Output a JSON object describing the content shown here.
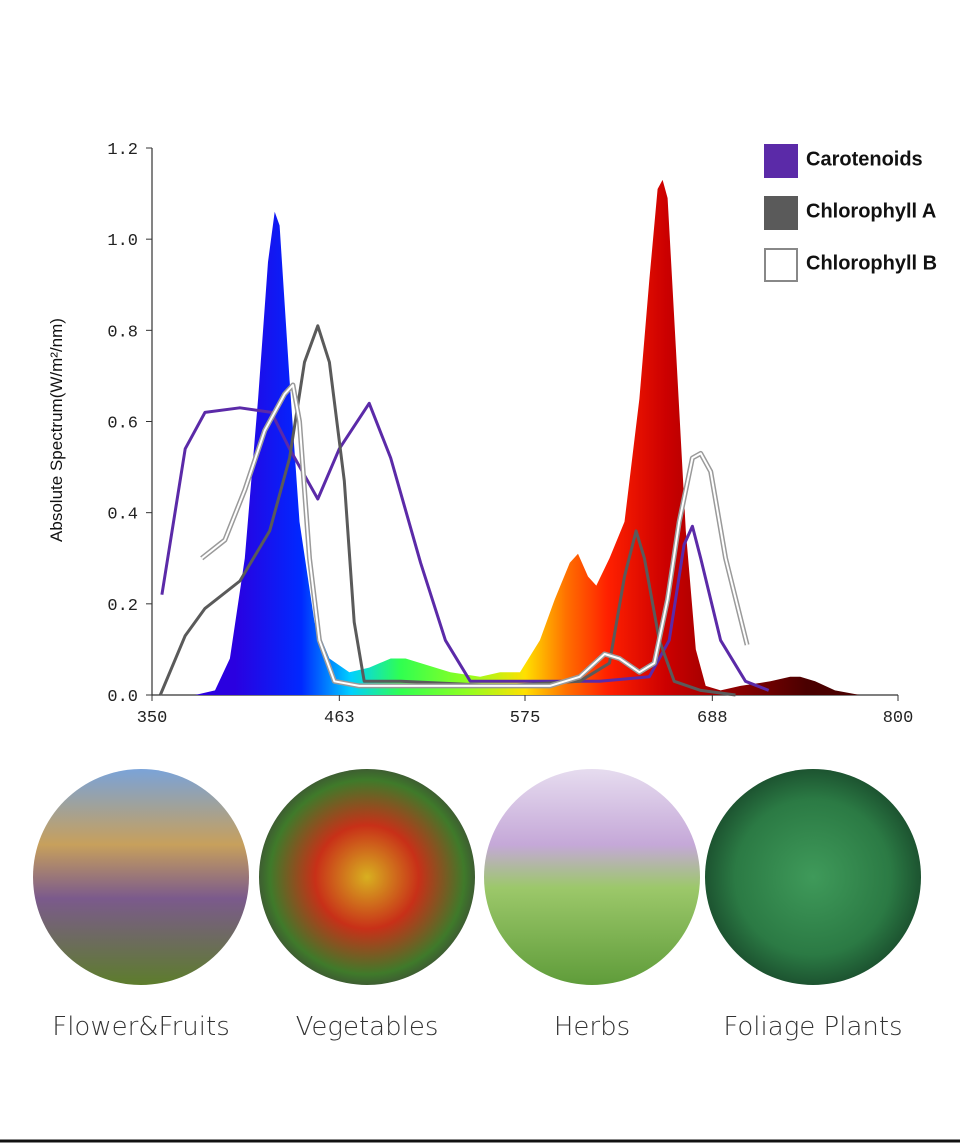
{
  "chart_data": {
    "type": "spectrum",
    "ylabel": "Absolute Spectrum(W/m²/nm)",
    "xlim": [
      350,
      800
    ],
    "xticks": [
      350,
      463,
      575,
      688,
      800
    ],
    "ylim": [
      0,
      1.2
    ],
    "yticks": [
      {
        "value": 0,
        "label": "0.0"
      },
      0.2,
      0.4,
      0.6,
      0.8,
      {
        "value": 1,
        "label": "1.0"
      },
      1.2
    ],
    "legend": "top-right",
    "series": [
      {
        "type": "area",
        "gradient": [
          {
            "x": 400,
            "color": "#2a00e0"
          },
          {
            "x": 440,
            "color": "#0028ff"
          },
          {
            "x": 470,
            "color": "#00d0ff"
          },
          {
            "x": 500,
            "color": "#30ff50"
          },
          {
            "x": 540,
            "color": "#90ff20"
          },
          {
            "x": 575,
            "color": "#ffe000"
          },
          {
            "x": 600,
            "color": "#ff7000"
          },
          {
            "x": 625,
            "color": "#ff2000"
          },
          {
            "x": 660,
            "color": "#cc0000"
          },
          {
            "x": 745,
            "color": "#4a0000"
          }
        ],
        "x": [
          376,
          388,
          397,
          406,
          414,
          420,
          424,
          427,
          433,
          439,
          448,
          457,
          469,
          481,
          494,
          503,
          512,
          530,
          548,
          560,
          572,
          584,
          593,
          602,
          607,
          613,
          618,
          626,
          635,
          644,
          650,
          655,
          658,
          661,
          666,
          672,
          678,
          684,
          693,
          705,
          723,
          735,
          741,
          750,
          762,
          777
        ],
        "values": [
          0,
          0.01,
          0.08,
          0.3,
          0.65,
          0.95,
          1.06,
          1.03,
          0.69,
          0.38,
          0.16,
          0.08,
          0.05,
          0.06,
          0.08,
          0.08,
          0.07,
          0.05,
          0.04,
          0.05,
          0.05,
          0.12,
          0.21,
          0.29,
          0.31,
          0.26,
          0.24,
          0.3,
          0.38,
          0.65,
          0.91,
          1.11,
          1.13,
          1.09,
          0.76,
          0.36,
          0.1,
          0.02,
          0.01,
          0.02,
          0.03,
          0.04,
          0.04,
          0.03,
          0.01,
          0
        ]
      },
      {
        "name": "Carotenoids",
        "type": "line",
        "color": "#5b2aa8",
        "x": [
          356,
          370,
          382,
          403,
          422,
          433,
          450,
          463,
          481,
          494,
          512,
          527,
          542,
          560,
          590,
          620,
          650,
          662,
          671,
          676,
          681,
          693,
          708,
          722
        ],
        "values": [
          0.22,
          0.54,
          0.62,
          0.63,
          0.62,
          0.54,
          0.43,
          0.54,
          0.64,
          0.52,
          0.29,
          0.12,
          0.03,
          0.03,
          0.03,
          0.03,
          0.04,
          0.12,
          0.33,
          0.37,
          0.3,
          0.12,
          0.03,
          0.01
        ]
      },
      {
        "name": "Chlorophyll A",
        "type": "line",
        "color": "#5a5a5a",
        "x": [
          355,
          370,
          382,
          403,
          421,
          433,
          442,
          450,
          457,
          466,
          472,
          478,
          500,
          560,
          608,
          626,
          635,
          642,
          647,
          656,
          665,
          681,
          702
        ],
        "values": [
          0,
          0.13,
          0.19,
          0.25,
          0.36,
          0.52,
          0.73,
          0.81,
          0.73,
          0.47,
          0.16,
          0.03,
          0.03,
          0.02,
          0.03,
          0.07,
          0.26,
          0.36,
          0.3,
          0.12,
          0.03,
          0.01,
          0
        ]
      },
      {
        "name": "Chlorophyll B",
        "type": "outline",
        "color": "#ffffff",
        "x": [
          380,
          394,
          406,
          418,
          430,
          435,
          439,
          445,
          451,
          460,
          475,
          530,
          590,
          608,
          623,
          632,
          644,
          653,
          661,
          668,
          676,
          681,
          687,
          696,
          709
        ],
        "values": [
          0.3,
          0.34,
          0.45,
          0.58,
          0.66,
          0.68,
          0.6,
          0.3,
          0.12,
          0.03,
          0.02,
          0.02,
          0.02,
          0.04,
          0.09,
          0.08,
          0.05,
          0.07,
          0.21,
          0.38,
          0.52,
          0.53,
          0.49,
          0.3,
          0.11
        ]
      }
    ]
  },
  "gallery": {
    "captions": [
      "Flower&Fruits",
      "Vegetables",
      "Herbs",
      "Foliage Plants"
    ]
  }
}
